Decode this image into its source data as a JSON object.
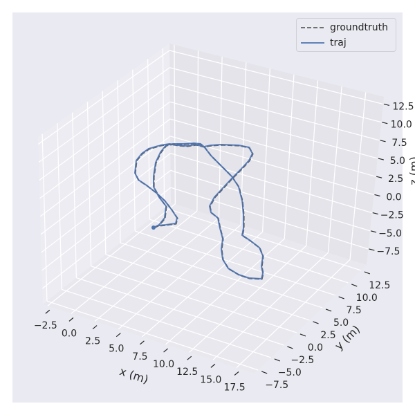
{
  "chart_data": {
    "type": "line3d",
    "title": "",
    "xlabel": "x (m)",
    "ylabel": "y (m)",
    "zlabel": "z (m)",
    "xlim": [
      -3.0,
      19.4
    ],
    "ylim": [
      -8.2,
      13.6
    ],
    "zlim": [
      -9.7,
      13.5
    ],
    "xticks": [
      "−2.5",
      "0.0",
      "2.5",
      "5.0",
      "7.5",
      "10.0",
      "12.5",
      "15.0",
      "17.5"
    ],
    "xtick_values": [
      -2.5,
      0,
      2.5,
      5,
      7.5,
      10,
      12.5,
      15,
      17.5
    ],
    "yticks": [
      "−7.5",
      "−5.0",
      "−2.5",
      "0.0",
      "2.5",
      "5.0",
      "7.5",
      "10.0",
      "12.5"
    ],
    "ytick_values": [
      -7.5,
      -5,
      -2.5,
      0,
      2.5,
      5,
      7.5,
      10,
      12.5
    ],
    "zticks": [
      "−7.5",
      "−5.0",
      "−2.5",
      "0.0",
      "2.5",
      "5.0",
      "7.5",
      "10.0",
      "12.5"
    ],
    "ztick_values": [
      -7.5,
      -5,
      -2.5,
      0,
      2.5,
      5,
      7.5,
      10,
      12.5
    ],
    "grid": true,
    "legend_position": "top-right",
    "series": [
      {
        "name": "groundtruth",
        "style": "dashed",
        "color": "#5f5f5f"
      },
      {
        "name": "traj",
        "style": "solid",
        "color": "#4c72b0"
      }
    ],
    "colors": {
      "panel": "#eaeaf2",
      "grid": "#ffffff",
      "text": "#262626"
    }
  },
  "legend": {
    "items": [
      "groundtruth",
      "traj"
    ]
  }
}
